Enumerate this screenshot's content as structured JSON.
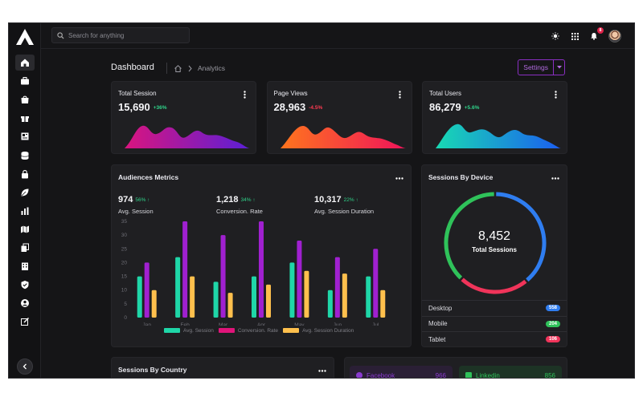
{
  "app": {
    "logo": "app-logo-icon"
  },
  "sidebar": {
    "items": [
      {
        "name": "home",
        "icon": "home-icon",
        "active": true
      },
      {
        "name": "briefcase",
        "icon": "briefcase-icon"
      },
      {
        "name": "shopping-bag",
        "icon": "shopping-bag-icon"
      },
      {
        "name": "gift",
        "icon": "gift-icon"
      },
      {
        "name": "newspaper",
        "icon": "newspaper-icon"
      },
      {
        "name": "database",
        "icon": "database-icon"
      },
      {
        "name": "lock",
        "icon": "lock-icon"
      },
      {
        "name": "leaf",
        "icon": "leaf-icon"
      },
      {
        "name": "chart",
        "icon": "bar-chart-icon"
      },
      {
        "name": "map",
        "icon": "map-icon"
      },
      {
        "name": "copy",
        "icon": "copy-icon"
      },
      {
        "name": "building",
        "icon": "building-icon"
      },
      {
        "name": "shield",
        "icon": "shield-check-icon"
      },
      {
        "name": "user",
        "icon": "user-circle-icon"
      },
      {
        "name": "edit",
        "icon": "edit-icon"
      }
    ],
    "collapse_icon": "chevron-left-icon"
  },
  "topbar": {
    "search_placeholder": "Search for anything",
    "notification_count": "8"
  },
  "header": {
    "title": "Dashboard",
    "breadcrumb_current": "Analytics",
    "settings_label": "Settings"
  },
  "stats": [
    {
      "title": "Total Session",
      "value": "15,690",
      "delta": "+36%",
      "delta_color": "#2fd48a",
      "gradient": [
        "#e0147a",
        "#5b1fd6"
      ]
    },
    {
      "title": "Page Views",
      "value": "28,963",
      "delta": "-4.5%",
      "delta_color": "#ff3b52",
      "gradient": [
        "#ff7a1a",
        "#f0145a"
      ]
    },
    {
      "title": "Total Users",
      "value": "86,279",
      "delta": "+5.6%",
      "delta_color": "#2fd48a",
      "gradient": [
        "#18e0b0",
        "#1b5ef0"
      ]
    }
  ],
  "audience": {
    "title": "Audiences Metrics",
    "metrics": [
      {
        "value": "974",
        "delta": "56% ↑",
        "label": "Avg. Session"
      },
      {
        "value": "1,218",
        "delta": "34% ↑",
        "label": "Conversion. Rate"
      },
      {
        "value": "10,317",
        "delta": "22% ↑",
        "label": "Avg. Session Duration"
      }
    ]
  },
  "chart_data": {
    "type": "bar",
    "title": "Audiences Metrics",
    "categories": [
      "Jan",
      "Feb",
      "Mar",
      "Apr",
      "May",
      "Jun",
      "Jul"
    ],
    "series": [
      {
        "name": "Avg. Session",
        "color": "#1fd6a8",
        "values": [
          15,
          22,
          13,
          15,
          20,
          10,
          15
        ]
      },
      {
        "name": "Conversion. Rate",
        "color": "#a020d0",
        "values": [
          20,
          35,
          30,
          35,
          28,
          22,
          25
        ]
      },
      {
        "name": "Avg. Session Duration",
        "color": "#ffc04d",
        "values": [
          10,
          15,
          9,
          12,
          17,
          16,
          10
        ]
      }
    ],
    "y_ticks": [
      "0",
      "5",
      "10",
      "15",
      "20",
      "25",
      "30",
      "35"
    ],
    "ylim": [
      0,
      35
    ],
    "legend_position": "bottom",
    "legend_colors": [
      "#1fd6a8",
      "#e0147a",
      "#ffc04d"
    ]
  },
  "sessions_device": {
    "title": "Sessions By Device",
    "total_value": "8,452",
    "total_label": "Total Sessions",
    "slices": [
      {
        "name": "Desktop",
        "value": 558,
        "count": "558",
        "color": "#2f7df0"
      },
      {
        "name": "Mobile",
        "value": 204,
        "count": "204",
        "color": "#2fc25a"
      },
      {
        "name": "Tablet",
        "value": 106,
        "count": "106",
        "color": "#f0345a"
      }
    ],
    "ring_fractions": {
      "Desktop": 0.39,
      "Tablet": 0.23,
      "Mobile": 0.38
    }
  },
  "country": {
    "title": "Sessions By Country"
  },
  "social": [
    {
      "name": "Facebook",
      "value": "966",
      "icon": "facebook-icon",
      "color": "#8a3ad0"
    },
    {
      "name": "Linkedin",
      "value": "856",
      "icon": "linkedin-icon",
      "color": "#2fc25a"
    }
  ]
}
